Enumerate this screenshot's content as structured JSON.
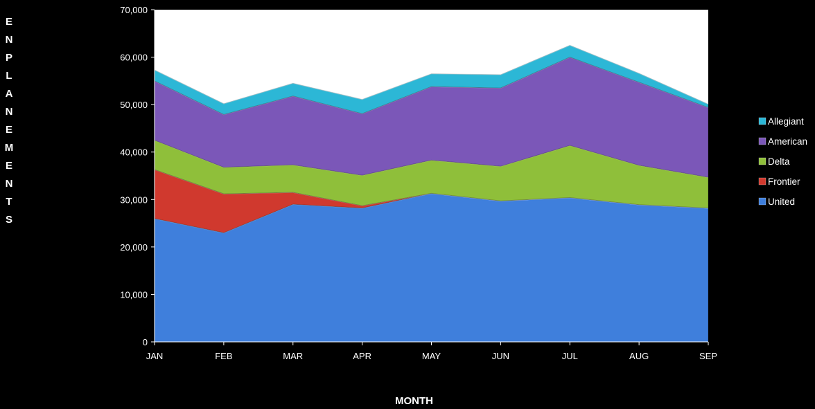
{
  "chart_data": {
    "type": "area",
    "stacked": true,
    "xlabel": "MONTH",
    "ylabel": "ENPLANEMENTS",
    "ylim": [
      0,
      70000
    ],
    "yticks": [
      0,
      10000,
      20000,
      30000,
      40000,
      50000,
      60000,
      70000
    ],
    "ytick_labels": [
      "0",
      "10,000",
      "20,000",
      "30,000",
      "40,000",
      "50,000",
      "60,000",
      "70,000"
    ],
    "categories": [
      "JAN",
      "FEB",
      "MAR",
      "APR",
      "MAY",
      "JUN",
      "JUL",
      "AUG",
      "SEP"
    ],
    "series": [
      {
        "name": "United",
        "color": "#3f7fdc",
        "values": [
          26000,
          23000,
          29000,
          28200,
          31300,
          29700,
          30400,
          28900,
          28200
        ]
      },
      {
        "name": "Frontier",
        "color": "#d0392e",
        "values": [
          10300,
          8200,
          2500,
          500,
          0,
          0,
          0,
          0,
          0
        ]
      },
      {
        "name": "Delta",
        "color": "#8fbf3a",
        "values": [
          6200,
          5600,
          5800,
          6400,
          7000,
          7300,
          11000,
          8300,
          6500
        ]
      },
      {
        "name": "American",
        "color": "#7b57b8",
        "values": [
          12500,
          11100,
          14500,
          13000,
          15500,
          16500,
          18600,
          17500,
          14700
        ]
      },
      {
        "name": "Allegiant",
        "color": "#2cb7d6",
        "values": [
          2300,
          2300,
          2700,
          3000,
          2700,
          2800,
          2500,
          1900,
          700
        ]
      }
    ],
    "legend_order": [
      "Allegiant",
      "American",
      "Delta",
      "Frontier",
      "United"
    ],
    "legend_position": "right",
    "plot_background": "#ffffff",
    "background": "#000000",
    "grid": false
  }
}
